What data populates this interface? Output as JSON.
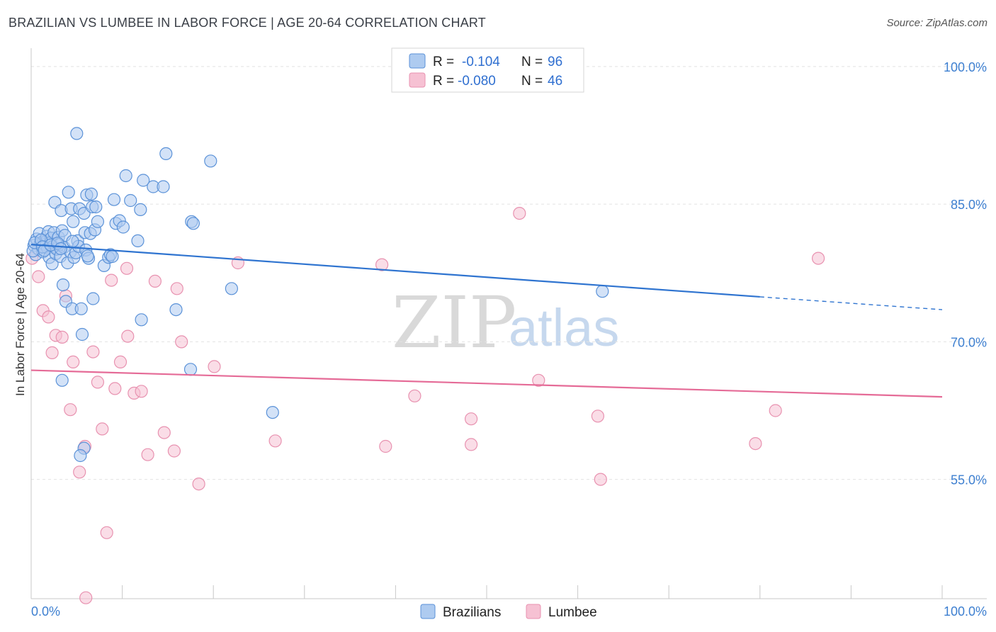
{
  "title": "BRAZILIAN VS LUMBEE IN LABOR FORCE | AGE 20-64 CORRELATION CHART",
  "source": "Source: ZipAtlas.com",
  "watermark": {
    "zip": "ZIP",
    "atlas": "atlas"
  },
  "colors": {
    "blue_fill": "#aecbf0",
    "blue_stroke": "#5b92d8",
    "blue_line": "#2f74d0",
    "pink_fill": "#f6c1d3",
    "pink_stroke": "#e892b0",
    "pink_line": "#e56b97"
  },
  "legend_top": [
    {
      "r_label": "R =",
      "r_value": "-0.104",
      "n_label": "N =",
      "n_value": "96"
    },
    {
      "r_label": "R =",
      "r_value": "-0.080",
      "n_label": "N =",
      "n_value": "46"
    }
  ],
  "legend_bottom": [
    "Brazilians",
    "Lumbee"
  ],
  "chart_data": {
    "type": "scatter",
    "title": "BRAZILIAN VS LUMBEE IN LABOR FORCE | AGE 20-64 CORRELATION CHART",
    "xlabel": "",
    "ylabel": "In Labor Force | Age 20-64",
    "xlim": [
      0,
      100
    ],
    "ylim": [
      42,
      102
    ],
    "x_tick_labels": [
      "0.0%",
      "100.0%"
    ],
    "y_ticks": [
      55,
      70,
      85,
      100
    ],
    "y_tick_labels": [
      "55.0%",
      "70.0%",
      "85.0%",
      "100.0%"
    ],
    "series": [
      {
        "name": "Brazilians",
        "r": -0.104,
        "n": 96,
        "trend": {
          "x0": 0,
          "y0": 80.6,
          "x1": 80,
          "y1": 74.9,
          "dash_to": 100,
          "dash_y": 73.5
        },
        "points": [
          [
            0.3,
            80.5
          ],
          [
            0.5,
            79.5
          ],
          [
            0.6,
            81.2
          ],
          [
            0.8,
            80.1
          ],
          [
            0.9,
            81.8
          ],
          [
            1.0,
            80.7
          ],
          [
            1.2,
            80.3
          ],
          [
            1.3,
            79.8
          ],
          [
            1.4,
            81.0
          ],
          [
            1.5,
            80.6
          ],
          [
            1.6,
            80.9
          ],
          [
            1.7,
            81.5
          ],
          [
            1.8,
            80.2
          ],
          [
            1.9,
            82.0
          ],
          [
            2.0,
            79.2
          ],
          [
            2.1,
            80.8
          ],
          [
            2.2,
            81.3
          ],
          [
            2.3,
            78.5
          ],
          [
            2.4,
            80.4
          ],
          [
            2.5,
            81.9
          ],
          [
            2.6,
            85.2
          ],
          [
            2.7,
            79.6
          ],
          [
            2.8,
            80.1
          ],
          [
            3.0,
            81.4
          ],
          [
            3.1,
            80.6
          ],
          [
            3.2,
            79.3
          ],
          [
            3.3,
            84.3
          ],
          [
            3.4,
            82.1
          ],
          [
            3.5,
            76.2
          ],
          [
            3.6,
            80.3
          ],
          [
            3.7,
            81.6
          ],
          [
            3.8,
            74.4
          ],
          [
            4.0,
            78.6
          ],
          [
            4.1,
            86.3
          ],
          [
            4.3,
            79.8
          ],
          [
            4.4,
            84.5
          ],
          [
            4.5,
            73.6
          ],
          [
            4.6,
            83.1
          ],
          [
            4.7,
            79.2
          ],
          [
            4.9,
            79.7
          ],
          [
            5.0,
            92.7
          ],
          [
            5.1,
            81.0
          ],
          [
            5.2,
            80.4
          ],
          [
            5.3,
            84.5
          ],
          [
            5.5,
            73.6
          ],
          [
            5.6,
            70.8
          ],
          [
            5.8,
            84.0
          ],
          [
            5.9,
            81.9
          ],
          [
            6.0,
            80.0
          ],
          [
            6.1,
            86.0
          ],
          [
            6.3,
            79.1
          ],
          [
            6.5,
            81.8
          ],
          [
            6.6,
            86.1
          ],
          [
            6.7,
            84.7
          ],
          [
            6.8,
            74.7
          ],
          [
            7.0,
            82.2
          ],
          [
            7.1,
            84.7
          ],
          [
            7.3,
            83.1
          ],
          [
            8.0,
            78.3
          ],
          [
            8.5,
            79.2
          ],
          [
            8.7,
            79.5
          ],
          [
            8.9,
            79.3
          ],
          [
            9.1,
            85.5
          ],
          [
            9.3,
            82.9
          ],
          [
            9.7,
            83.2
          ],
          [
            10.4,
            88.1
          ],
          [
            10.1,
            82.5
          ],
          [
            10.9,
            85.4
          ],
          [
            11.7,
            81.0
          ],
          [
            12.0,
            84.4
          ],
          [
            12.1,
            72.4
          ],
          [
            12.3,
            87.6
          ],
          [
            13.4,
            86.9
          ],
          [
            14.5,
            86.9
          ],
          [
            14.8,
            90.5
          ],
          [
            15.9,
            73.5
          ],
          [
            17.6,
            83.1
          ],
          [
            17.8,
            82.9
          ],
          [
            17.5,
            67.0
          ],
          [
            19.7,
            89.7
          ],
          [
            22.0,
            75.8
          ],
          [
            26.5,
            62.3
          ],
          [
            62.7,
            75.5
          ],
          [
            5.8,
            58.4
          ],
          [
            5.4,
            57.6
          ],
          [
            3.4,
            65.8
          ],
          [
            0.2,
            79.9
          ],
          [
            0.4,
            80.8
          ],
          [
            1.1,
            81.1
          ],
          [
            1.25,
            80.35
          ],
          [
            1.45,
            79.95
          ],
          [
            2.15,
            80.55
          ],
          [
            2.9,
            80.75
          ],
          [
            3.25,
            80.15
          ],
          [
            4.55,
            80.95
          ],
          [
            6.2,
            79.35
          ]
        ]
      },
      {
        "name": "Lumbee",
        "r": -0.08,
        "n": 46,
        "trend": {
          "x0": 0,
          "y0": 66.9,
          "x1": 100,
          "y1": 64.0
        },
        "points": [
          [
            0.1,
            79.1
          ],
          [
            0.8,
            77.1
          ],
          [
            1.3,
            73.4
          ],
          [
            1.9,
            72.7
          ],
          [
            2.3,
            68.8
          ],
          [
            2.7,
            70.7
          ],
          [
            3.4,
            70.5
          ],
          [
            3.8,
            75.0
          ],
          [
            4.3,
            62.6
          ],
          [
            4.6,
            67.8
          ],
          [
            5.3,
            55.8
          ],
          [
            5.9,
            58.6
          ],
          [
            6.0,
            42.1
          ],
          [
            6.8,
            68.9
          ],
          [
            7.3,
            65.6
          ],
          [
            7.8,
            60.5
          ],
          [
            8.8,
            76.7
          ],
          [
            9.2,
            64.9
          ],
          [
            9.8,
            67.8
          ],
          [
            10.5,
            78.0
          ],
          [
            10.6,
            70.6
          ],
          [
            11.3,
            64.4
          ],
          [
            12.1,
            64.6
          ],
          [
            12.8,
            57.7
          ],
          [
            13.6,
            76.6
          ],
          [
            14.6,
            60.1
          ],
          [
            15.7,
            58.1
          ],
          [
            16.0,
            75.8
          ],
          [
            16.5,
            70.0
          ],
          [
            18.4,
            54.5
          ],
          [
            20.1,
            67.3
          ],
          [
            22.7,
            78.6
          ],
          [
            26.8,
            59.2
          ],
          [
            38.5,
            78.4
          ],
          [
            38.9,
            58.6
          ],
          [
            42.1,
            64.1
          ],
          [
            48.3,
            61.6
          ],
          [
            48.3,
            58.8
          ],
          [
            53.6,
            84.0
          ],
          [
            55.7,
            65.8
          ],
          [
            62.2,
            61.9
          ],
          [
            62.5,
            55.0
          ],
          [
            79.5,
            58.9
          ],
          [
            81.7,
            62.5
          ],
          [
            86.4,
            79.1
          ],
          [
            8.3,
            49.2
          ]
        ]
      }
    ]
  }
}
